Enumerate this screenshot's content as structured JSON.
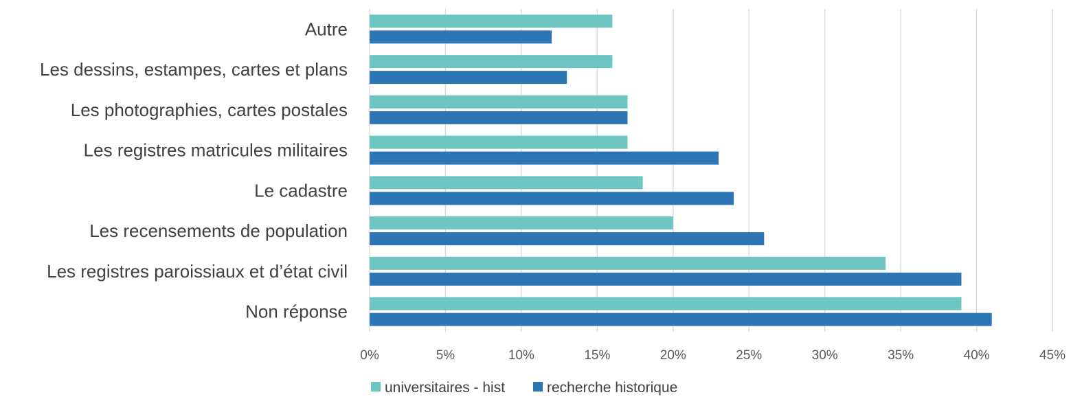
{
  "chart_data": {
    "type": "bar",
    "orientation": "horizontal",
    "title": "",
    "xlabel": "",
    "ylabel": "",
    "categories": [
      "Autre",
      "Les dessins, estampes, cartes et plans",
      "Les photographies, cartes postales",
      "Les registres matricules militaires",
      "Le cadastre",
      "Les recensements de population",
      "Les registres paroissiaux et d’état civil",
      "Non réponse"
    ],
    "series": [
      {
        "name": "universitaires - hist",
        "color": "#6cc5c1",
        "values": [
          16,
          16,
          17,
          17,
          18,
          20,
          34,
          39
        ]
      },
      {
        "name": "recherche historique",
        "color": "#2e75b6",
        "values": [
          12,
          13,
          17,
          23,
          24,
          26,
          39,
          41
        ]
      }
    ],
    "xlim": [
      0,
      45
    ],
    "xticks": [
      0,
      5,
      10,
      15,
      20,
      25,
      30,
      35,
      40,
      45
    ],
    "xtick_labels": [
      "0%",
      "5%",
      "10%",
      "15%",
      "20%",
      "25%",
      "30%",
      "35%",
      "40%",
      "45%"
    ],
    "grid": "vertical",
    "legend": "bottom-center"
  }
}
